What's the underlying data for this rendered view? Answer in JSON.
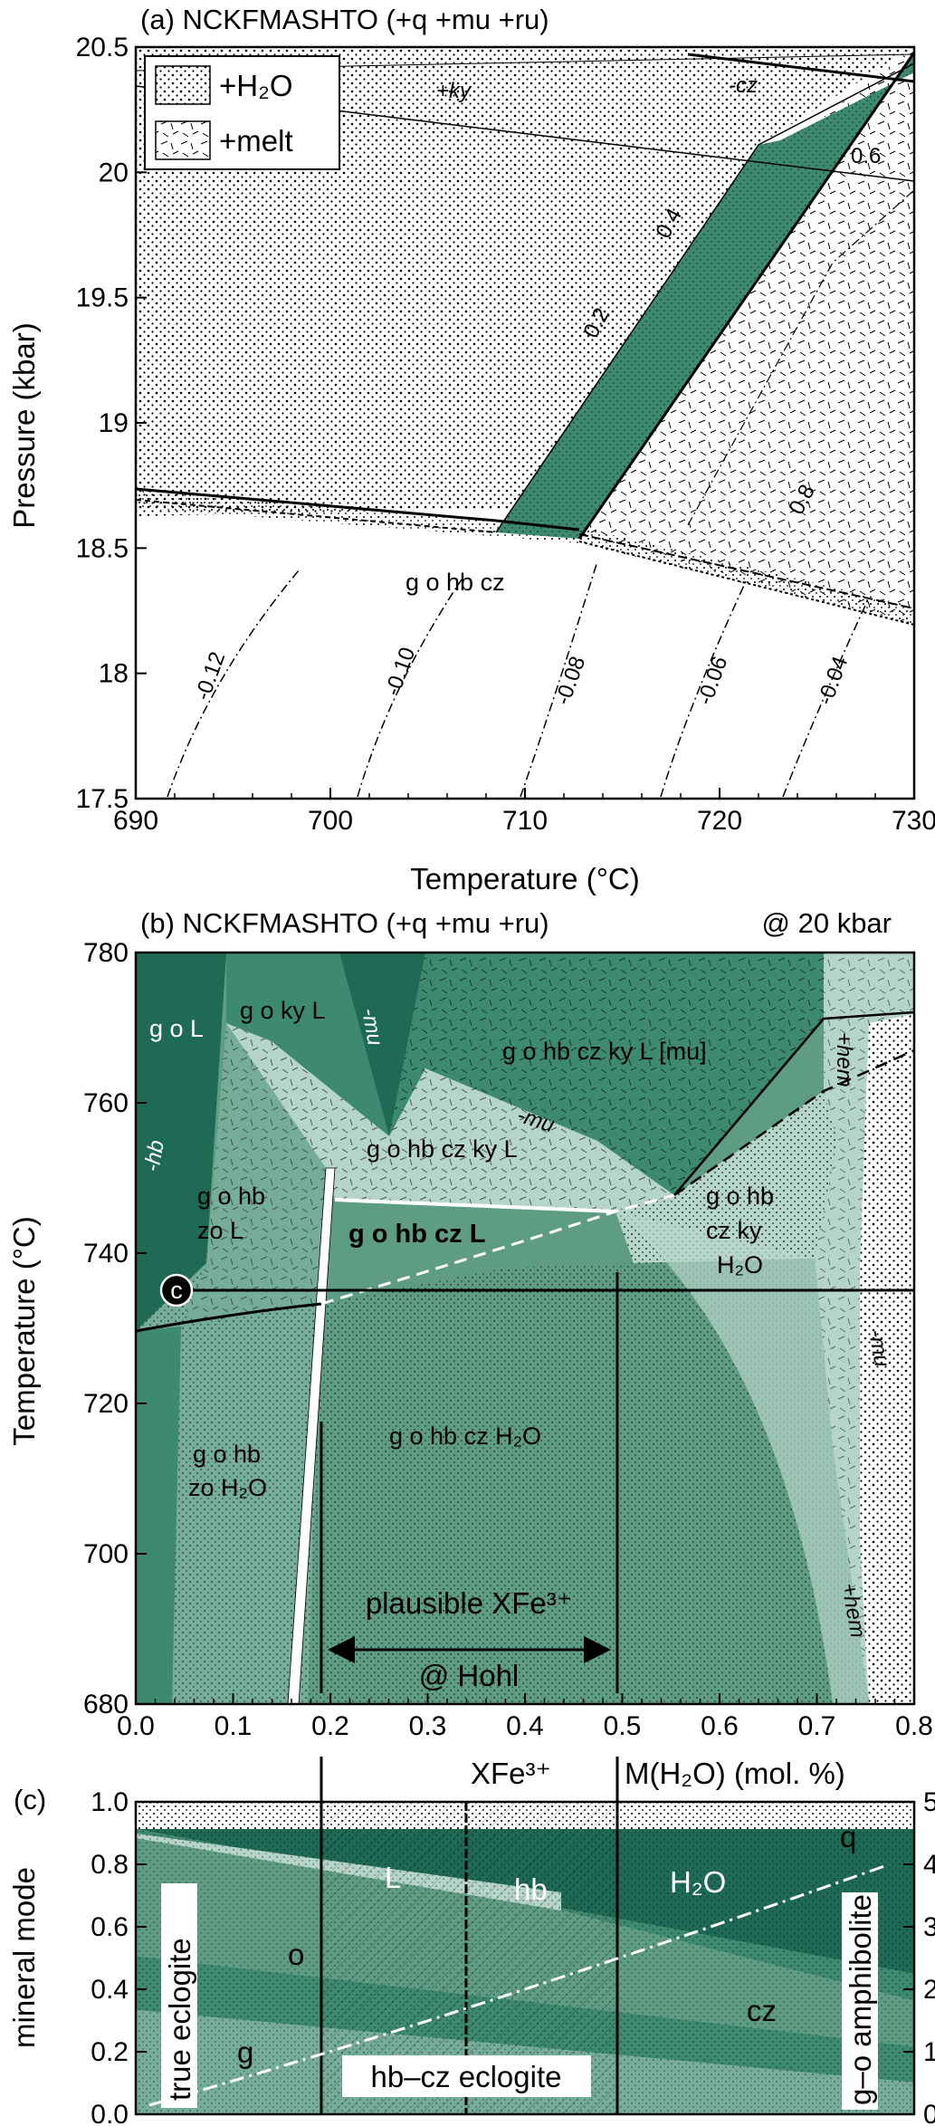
{
  "panel_a": {
    "title": "(a) NCKFMASHTO (+q +mu +ru)",
    "legend": {
      "h2o": "+H₂O",
      "melt": "+melt"
    },
    "xlabel": "Temperature (°C)",
    "ylabel": "Pressure (kbar)",
    "x_ticks": [
      "690",
      "700",
      "710",
      "720",
      "730"
    ],
    "y_ticks": [
      "20.5",
      "20",
      "19.5",
      "19",
      "18.5",
      "18",
      "17.5"
    ],
    "field_label": "g o hb cz",
    "line_labels": {
      "ky": "+ky",
      "cz": "-cz"
    },
    "isopleths_melt": [
      "0.2",
      "0.4",
      "0.6",
      "0.8"
    ],
    "isopleths_h2o": [
      "-0.12",
      "-0.10",
      "-0.08",
      "-0.06",
      "-0.04"
    ]
  },
  "panel_b": {
    "title": "(b) NCKFMASHTO (+q +mu +ru)",
    "condition": "@ 20 kbar",
    "ylabel": "Temperature (°C)",
    "x_ticks": [
      "0.0",
      "0.1",
      "0.2",
      "0.3",
      "0.4",
      "0.5",
      "0.6",
      "0.7",
      "0.8"
    ],
    "y_ticks": [
      "780",
      "760",
      "740",
      "720",
      "700",
      "680"
    ],
    "fields": {
      "gol": "g o L",
      "gokyl": "g o ky L",
      "gohbczkylmu": "g o hb cz ky L [mu]",
      "gohbczkyl": "g o hb cz ky L",
      "gohbzol": "g o hb",
      "gohbzol2": "zo L",
      "gohbczl": "g o hb cz L",
      "gohbczkyh2o_1": "g o hb",
      "gohbczkyh2o_2": "cz ky",
      "gohbczkyh2o_3": "H₂O",
      "gohbzoh2o_1": "g o hb",
      "gohbzoh2o_2": "zo H₂O",
      "gohbczh2o": "g o hb cz H₂O"
    },
    "line_labels": {
      "mu_top": "-mu",
      "hb": "-hb",
      "mu_mid": "-mu",
      "hem_top": "+hem",
      "mu_right": "-mu",
      "hem_bottom": "+hem"
    },
    "marker": "c",
    "annotation_line1": "plausible XFe³⁺",
    "annotation_line2": "@ Hohl"
  },
  "panel_c": {
    "title": "(c)",
    "xlabel": "XFe³⁺",
    "ylabel": "mineral mode",
    "y2label": "M(H₂O) (mol. %)",
    "y_ticks": [
      "1.0",
      "0.8",
      "0.6",
      "0.4",
      "0.2",
      "0.0"
    ],
    "y2_ticks": [
      "5",
      "4",
      "3",
      "2",
      "1",
      "0"
    ],
    "phase_labels": {
      "l": "L",
      "hb": "hb",
      "h2o": "H₂O",
      "q": "q",
      "o": "o",
      "cz": "cz",
      "g": "g"
    },
    "side_labels": {
      "left": "true eclogite",
      "right": "g–o amphibolite"
    },
    "bottom_label": "hb–cz eclogite"
  },
  "colors": {
    "dark": "#1f6a54",
    "medium": "#3d8a70",
    "light": "#76ad98",
    "pale": "#b6d5c9",
    "white": "#ffffff"
  }
}
